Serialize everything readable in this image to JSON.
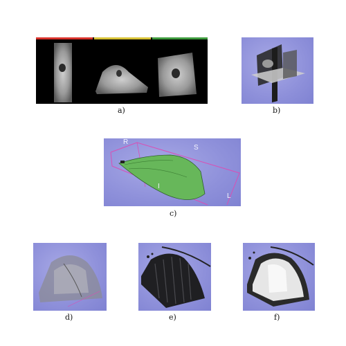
{
  "figure": {
    "panels": [
      {
        "id": "a",
        "caption": "a)",
        "content": "three orthogonal slice views (axial, coronal, sagittal) of grayscale scan",
        "stripe_colors": [
          "#d9322b",
          "#d8c236",
          "#3e9b3d"
        ]
      },
      {
        "id": "b",
        "caption": "b)",
        "content": "3D slice planes intersecting on blue background"
      },
      {
        "id": "c",
        "caption": "c)",
        "content": "green segmented dome-shaped surface in bounding box",
        "orientation_labels": {
          "r": "R",
          "s": "S",
          "i": "I",
          "l": "L"
        },
        "surface_color": "#67b75a"
      },
      {
        "id": "d",
        "caption": "d)",
        "content": "semi-transparent volume rendering of dome on blue background"
      },
      {
        "id": "e",
        "caption": "e)",
        "content": "dark volume rendering of dome with striations"
      },
      {
        "id": "f",
        "caption": "f)",
        "content": "bright volume rendering of dome on blue background"
      }
    ]
  }
}
